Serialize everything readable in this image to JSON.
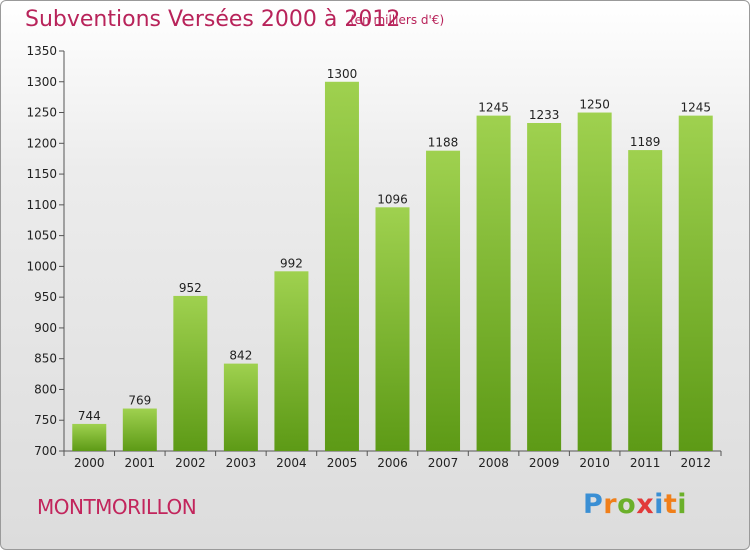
{
  "header": {
    "title": "Subventions Versées 2000 à 2012",
    "subtitle": "(en milliers d'€)"
  },
  "footer": {
    "city": "MONTMORILLON",
    "logo": {
      "letters": [
        "P",
        "r",
        "o",
        "x",
        "i",
        "t",
        "i"
      ],
      "colors": [
        "#3a8fd4",
        "#f07f1a",
        "#6bb02a",
        "#e23a3a",
        "#3a8fd4",
        "#f07f1a",
        "#6bb02a"
      ]
    }
  },
  "chart_data": {
    "type": "bar",
    "categories": [
      "2000",
      "2001",
      "2002",
      "2003",
      "2004",
      "2005",
      "2006",
      "2007",
      "2008",
      "2009",
      "2010",
      "2011",
      "2012"
    ],
    "values": [
      744,
      769,
      952,
      842,
      992,
      1300,
      1096,
      1188,
      1245,
      1233,
      1250,
      1189,
      1245
    ],
    "ylim": [
      700,
      1350
    ],
    "yticks": [
      700,
      750,
      800,
      850,
      900,
      950,
      1000,
      1050,
      1100,
      1150,
      1200,
      1250,
      1300,
      1350
    ],
    "grid": false,
    "legend": "none",
    "colors": {
      "bar_top": "#9fd14f",
      "bar_bottom": "#5d9a16",
      "axis": "#555555",
      "title": "#b8235a"
    }
  }
}
